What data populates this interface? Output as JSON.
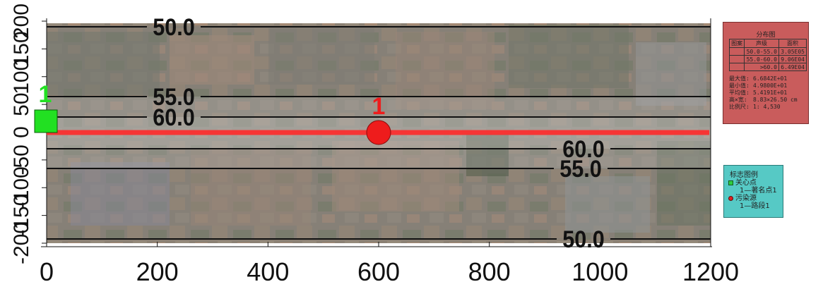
{
  "x_axis": {
    "ticks": [
      "0",
      "200",
      "400",
      "600",
      "800",
      "1000",
      "1200"
    ]
  },
  "y_axis": {
    "ticks": [
      "200",
      "150",
      "100",
      "50",
      "0",
      "-50",
      "-100",
      "-150",
      "-200"
    ]
  },
  "contours": [
    {
      "label": "50.0",
      "level": 50.0
    },
    {
      "label": "55.0",
      "level": 55.0
    },
    {
      "label": "60.0",
      "level": 60.0
    },
    {
      "label": "60.0",
      "level": 60.0
    },
    {
      "label": "55.0",
      "level": 55.0
    },
    {
      "label": "50.0",
      "level": 50.0
    }
  ],
  "markers": {
    "receptor": {
      "label": "1",
      "color": "#22e022"
    },
    "source": {
      "label": "1",
      "color": "#ee1c1c"
    }
  },
  "road_color": "#ff2a2a",
  "distribution": {
    "title": "分布图",
    "headers": [
      "图案",
      "声级",
      "面积"
    ],
    "rows": [
      {
        "pattern": "",
        "level": "50.0-55.0",
        "area": "3.05E05"
      },
      {
        "pattern": "",
        "level": "55.0-60.0",
        "area": "9.06E04"
      },
      {
        "pattern": "",
        "level": ">60.0",
        "area": "6.49E04"
      }
    ],
    "stats": [
      {
        "key": "最大值:",
        "value": "6.6842E+01"
      },
      {
        "key": "最小值:",
        "value": "4.9800E+01"
      },
      {
        "key": "平均值:",
        "value": "5.4191E+01"
      },
      {
        "key": "高×宽:",
        "value": "8.83×26.50 cm"
      },
      {
        "key": "比例尺:",
        "value": "1: 4,530"
      }
    ],
    "panel_color": "#c95c5c"
  },
  "legend": {
    "title": "标志图例",
    "items": [
      {
        "symbol": "green-square",
        "label": "关心点",
        "sub": "1—著名点1"
      },
      {
        "symbol": "red-dot",
        "label": "污染源",
        "sub": "1—路段1"
      }
    ],
    "panel_color": "#56c9c5"
  }
}
